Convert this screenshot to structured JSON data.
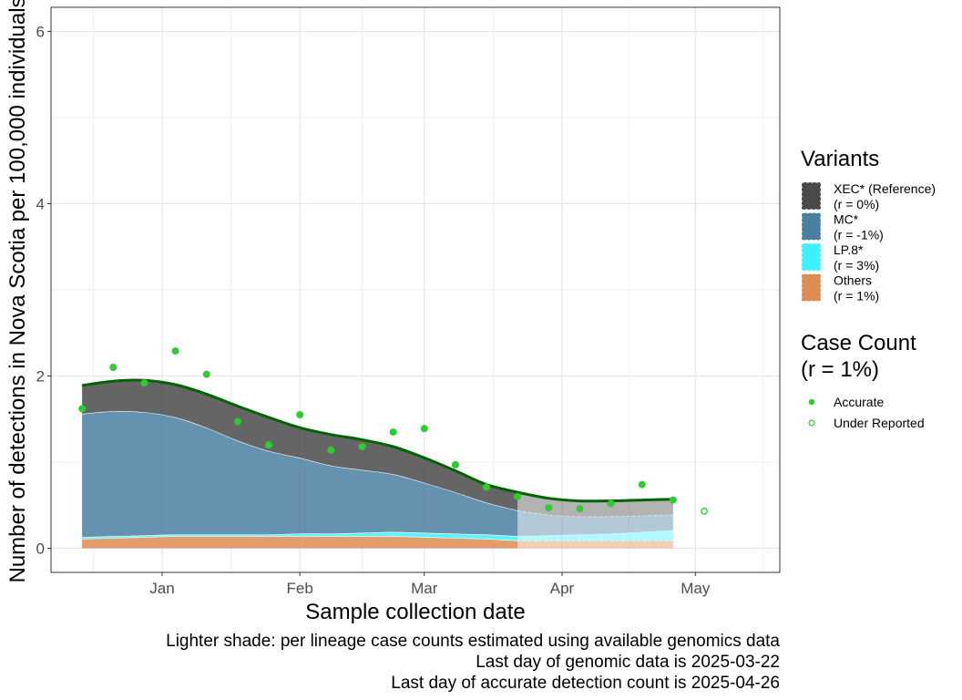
{
  "chart_data": {
    "type": "area",
    "xlabel": "Sample collection date",
    "ylabel": "Number of detections in Nova Scotia per 100,000 individuals",
    "x_tick_labels": [
      "Jan",
      "Feb",
      "Mar",
      "Apr",
      "May"
    ],
    "x_tick_dates": [
      "2025-01-01",
      "2025-02-01",
      "2025-03-01",
      "2025-04-01",
      "2025-05-01"
    ],
    "xlim": [
      "2024-12-07",
      "2025-05-20"
    ],
    "y_ticks": [
      0,
      2,
      4,
      6
    ],
    "y_tick_labels": [
      "0",
      "2",
      "4",
      "6"
    ],
    "ylim": [
      -0.28,
      6.28
    ],
    "grid": true,
    "legend_position": "right",
    "stack_dates": [
      "2024-12-14",
      "2024-12-21",
      "2024-12-28",
      "2025-01-04",
      "2025-01-11",
      "2025-01-18",
      "2025-01-25",
      "2025-02-01",
      "2025-02-08",
      "2025-02-15",
      "2025-02-22",
      "2025-03-01",
      "2025-03-08",
      "2025-03-15",
      "2025-03-22",
      "2025-03-29",
      "2025-04-05",
      "2025-04-12",
      "2025-04-19",
      "2025-04-26"
    ],
    "genomic_cutoff_date": "2025-03-22",
    "series": [
      {
        "name": "Others",
        "rate": "(r = 1%)",
        "color": "#dd8c52",
        "values": [
          0.11,
          0.12,
          0.13,
          0.14,
          0.14,
          0.14,
          0.14,
          0.14,
          0.14,
          0.14,
          0.14,
          0.13,
          0.12,
          0.11,
          0.09,
          0.09,
          0.09,
          0.09,
          0.09,
          0.09
        ]
      },
      {
        "name": "LP.8*",
        "rate": "(r = 3%)",
        "color": "#40f0ff",
        "values": [
          0.02,
          0.02,
          0.02,
          0.02,
          0.02,
          0.02,
          0.02,
          0.03,
          0.03,
          0.04,
          0.05,
          0.05,
          0.05,
          0.05,
          0.05,
          0.06,
          0.07,
          0.08,
          0.1,
          0.12
        ]
      },
      {
        "name": "MC*",
        "rate": "(r = -1%)",
        "color": "#4a7fa0",
        "values": [
          1.43,
          1.45,
          1.43,
          1.36,
          1.24,
          1.09,
          0.97,
          0.88,
          0.79,
          0.73,
          0.67,
          0.58,
          0.48,
          0.37,
          0.3,
          0.24,
          0.21,
          0.2,
          0.19,
          0.18
        ]
      },
      {
        "name": "XEC* (Reference)",
        "rate": "(r = 0%)",
        "color": "#4a4a4a",
        "values": [
          0.33,
          0.35,
          0.37,
          0.38,
          0.39,
          0.4,
          0.39,
          0.35,
          0.36,
          0.35,
          0.32,
          0.29,
          0.25,
          0.21,
          0.21,
          0.19,
          0.18,
          0.18,
          0.18,
          0.18
        ]
      }
    ],
    "total_curve": [
      1.89,
      1.94,
      1.95,
      1.9,
      1.79,
      1.65,
      1.52,
      1.4,
      1.32,
      1.26,
      1.18,
      1.05,
      0.9,
      0.74,
      0.65,
      0.58,
      0.55,
      0.55,
      0.56,
      0.57
    ],
    "total_curve_color": "#006400",
    "case_count_points": {
      "accurate": {
        "dates": [
          "2024-12-14",
          "2024-12-21",
          "2024-12-28",
          "2025-01-04",
          "2025-01-11",
          "2025-01-18",
          "2025-01-25",
          "2025-02-01",
          "2025-02-08",
          "2025-02-15",
          "2025-02-22",
          "2025-03-01",
          "2025-03-08",
          "2025-03-15",
          "2025-03-22",
          "2025-03-29",
          "2025-04-05",
          "2025-04-12",
          "2025-04-19",
          "2025-04-26"
        ],
        "values": [
          1.62,
          2.1,
          1.92,
          2.29,
          2.02,
          1.47,
          1.2,
          1.55,
          1.14,
          1.18,
          1.35,
          1.39,
          0.97,
          0.71,
          0.6,
          0.47,
          0.46,
          0.52,
          0.74,
          0.56
        ]
      },
      "under_reported": {
        "dates": [
          "2025-05-03"
        ],
        "values": [
          0.43
        ]
      },
      "color": "#2ecc2e"
    }
  },
  "legend": {
    "variants_title": "Variants",
    "variants": [
      {
        "name": "XEC* (Reference)",
        "rate": "(r = 0%)",
        "color": "#4a4a4a"
      },
      {
        "name": "MC*",
        "rate": "(r = -1%)",
        "color": "#4a7fa0"
      },
      {
        "name": "LP.8*",
        "rate": "(r = 3%)",
        "color": "#40f0ff"
      },
      {
        "name": "Others",
        "rate": "(r = 1%)",
        "color": "#dd8c52"
      }
    ],
    "case_title_line1": "Case Count",
    "case_title_line2": "(r = 1%)",
    "case_items": [
      "Accurate",
      "Under Reported"
    ]
  },
  "caption": {
    "line1": "Lighter shade: per lineage case counts estimated using available genomics data",
    "line2": "Last day of genomic data is 2025-03-22",
    "line3": "Last day of accurate detection count is 2025-04-26"
  }
}
